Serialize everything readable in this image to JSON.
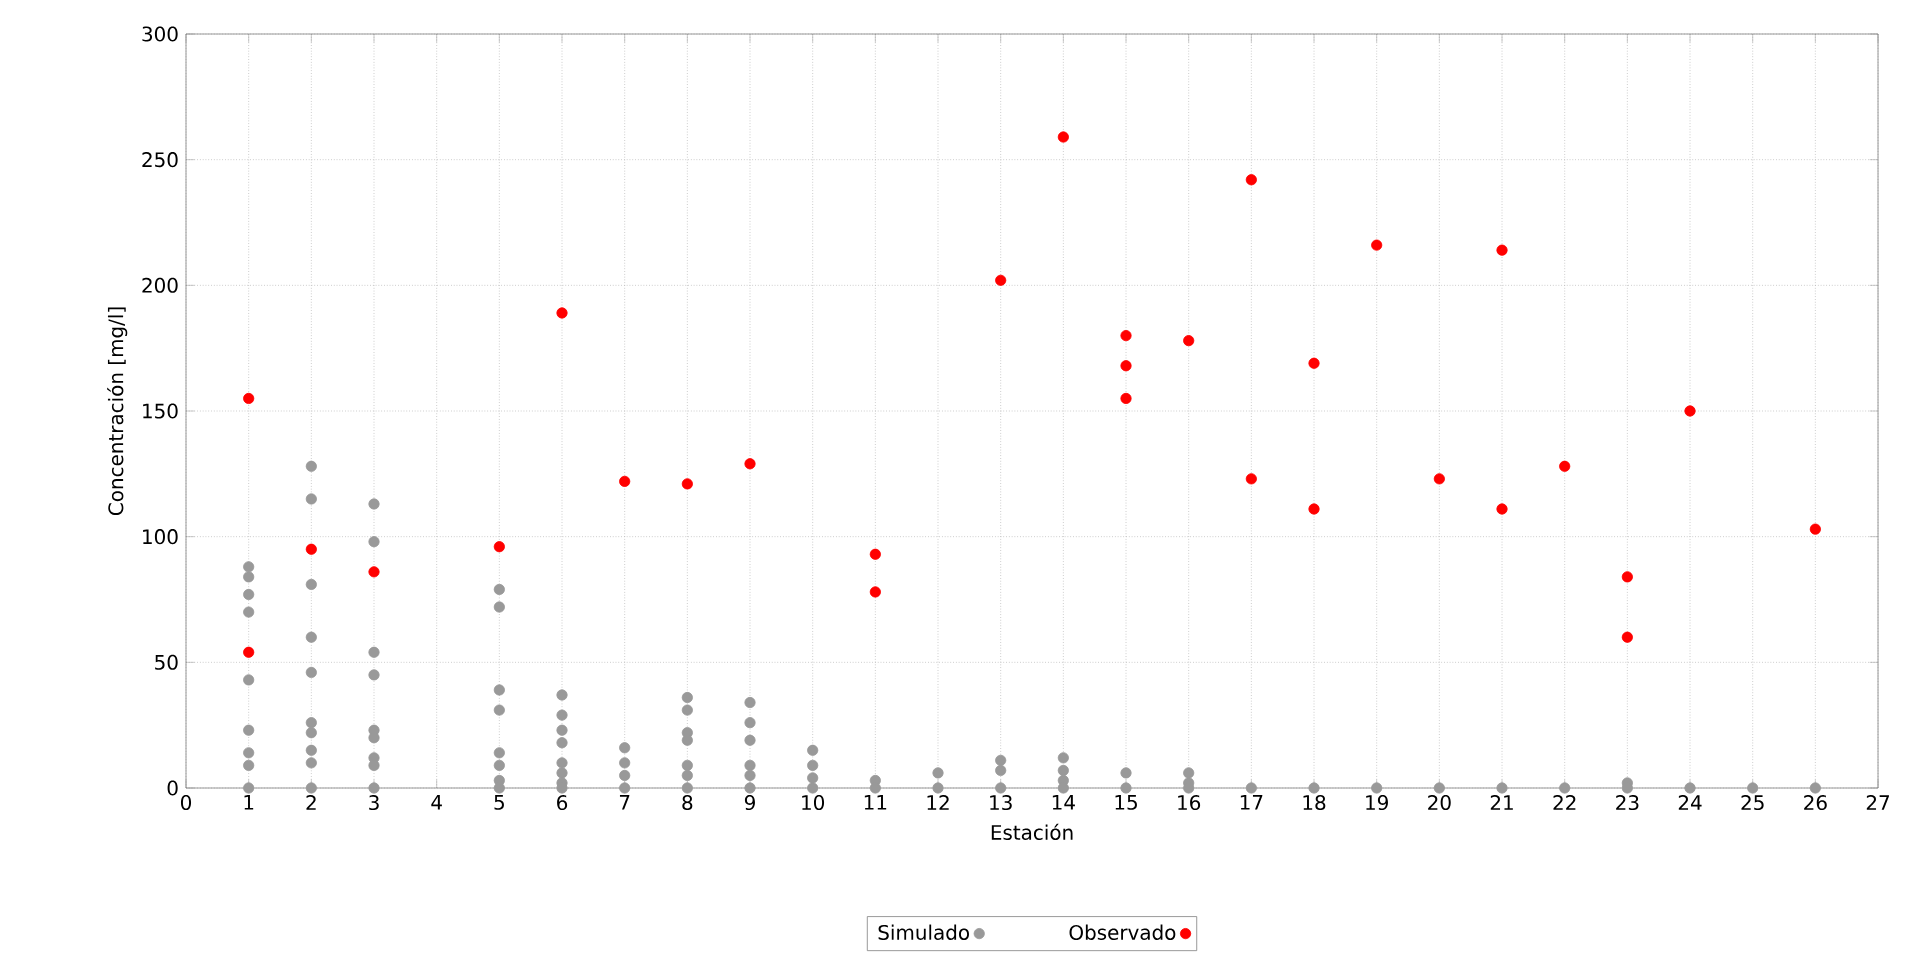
{
  "chart_data": {
    "type": "scatter",
    "xlabel": "Estación",
    "ylabel": "Concentración [mg/l]",
    "xlim": [
      0,
      27
    ],
    "xticks": [
      0,
      1,
      2,
      3,
      4,
      5,
      6,
      7,
      8,
      9,
      10,
      11,
      12,
      13,
      14,
      15,
      16,
      17,
      18,
      19,
      20,
      21,
      22,
      23,
      24,
      25,
      26,
      27
    ],
    "ylim": [
      0,
      300
    ],
    "yticks": [
      0,
      50,
      100,
      150,
      200,
      250,
      300
    ],
    "grid": true,
    "legend": "bottom",
    "series": [
      {
        "name": "Simulado",
        "color": "#999999",
        "x": [
          1,
          1,
          1,
          1,
          1,
          1,
          1,
          1,
          1,
          2,
          2,
          2,
          2,
          2,
          2,
          2,
          2,
          2,
          2,
          3,
          3,
          3,
          3,
          3,
          3,
          3,
          3,
          3,
          5,
          5,
          5,
          5,
          5,
          5,
          5,
          5,
          6,
          6,
          6,
          6,
          6,
          6,
          6,
          6,
          7,
          7,
          7,
          7,
          8,
          8,
          8,
          8,
          8,
          8,
          8,
          9,
          9,
          9,
          9,
          9,
          9,
          10,
          10,
          10,
          10,
          11,
          11,
          12,
          12,
          13,
          13,
          13,
          14,
          14,
          14,
          14,
          15,
          15,
          16,
          16,
          16,
          17,
          18,
          19,
          20,
          21,
          22,
          23,
          23,
          24,
          25,
          26
        ],
        "values": [
          88,
          84,
          77,
          70,
          43,
          23,
          14,
          9,
          0,
          128,
          115,
          81,
          60,
          46,
          26,
          22,
          15,
          10,
          0,
          113,
          98,
          54,
          45,
          23,
          20,
          12,
          9,
          0,
          79,
          72,
          39,
          31,
          14,
          9,
          3,
          0,
          37,
          29,
          23,
          18,
          10,
          6,
          2,
          0,
          16,
          10,
          5,
          0,
          36,
          31,
          22,
          19,
          9,
          5,
          0,
          34,
          26,
          19,
          9,
          5,
          0,
          15,
          9,
          4,
          0,
          3,
          0,
          6,
          0,
          11,
          7,
          0,
          12,
          7,
          3,
          0,
          6,
          0,
          6,
          2,
          0,
          0,
          0,
          0,
          0,
          0,
          0,
          2,
          0,
          0,
          0,
          0
        ]
      },
      {
        "name": "Observado",
        "color": "#ff0000",
        "x": [
          1,
          1,
          2,
          3,
          5,
          6,
          7,
          8,
          9,
          11,
          11,
          13,
          14,
          15,
          15,
          15,
          16,
          17,
          17,
          18,
          18,
          19,
          20,
          21,
          21,
          22,
          23,
          23,
          24,
          26
        ],
        "values": [
          155,
          54,
          95,
          86,
          96,
          189,
          122,
          121,
          129,
          93,
          78,
          202,
          259,
          180,
          168,
          155,
          178,
          242,
          123,
          169,
          111,
          216,
          123,
          214,
          111,
          128,
          84,
          60,
          150,
          103
        ]
      }
    ]
  }
}
